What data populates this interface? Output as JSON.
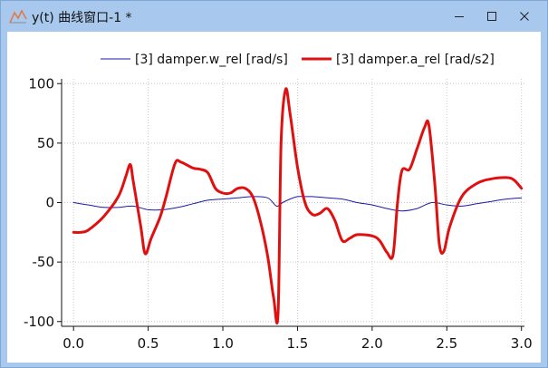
{
  "window": {
    "title": "y(t) 曲线窗口-1 *",
    "app_icon": "chart-line-icon",
    "controls": [
      "minimize-icon",
      "maximize-icon",
      "close-icon"
    ],
    "colors": {
      "titlebar": "#a9c8ee",
      "border": "#7fa7d6"
    }
  },
  "chart_data": {
    "type": "line",
    "title": "",
    "xlabel": "",
    "ylabel": "",
    "xlim": [
      -0.08,
      3.02
    ],
    "ylim": [
      -104,
      104
    ],
    "grid": true,
    "legend_position": "top",
    "x_ticks": [
      0.0,
      0.5,
      1.0,
      1.5,
      2.0,
      2.5,
      3.0
    ],
    "x_tick_labels": [
      "0.0",
      "0.5",
      "1.0",
      "1.5",
      "2.0",
      "2.5",
      "3.0"
    ],
    "y_ticks": [
      100,
      50,
      0,
      -50,
      -100
    ],
    "y_tick_labels": [
      "100",
      "50",
      "0",
      "-50",
      "-100"
    ],
    "series": [
      {
        "name": "[3] damper.w_rel [rad/s]",
        "color": "#1a1aa8",
        "x": [
          0,
          0.1,
          0.2,
          0.3,
          0.4,
          0.5,
          0.6,
          0.7,
          0.8,
          0.9,
          1.0,
          1.1,
          1.2,
          1.3,
          1.36,
          1.4,
          1.45,
          1.5,
          1.55,
          1.6,
          1.7,
          1.8,
          1.9,
          2.0,
          2.1,
          2.2,
          2.3,
          2.4,
          2.5,
          2.6,
          2.7,
          2.8,
          2.9,
          3.0
        ],
        "y": [
          0,
          -2,
          -4,
          -4,
          -3,
          -6,
          -6,
          -4,
          -1,
          2,
          3,
          4,
          5,
          4,
          -3,
          0,
          3,
          5,
          5,
          5,
          4,
          3,
          0,
          -2,
          -5,
          -7,
          -5,
          0,
          -2,
          -3,
          -1,
          1,
          3,
          4
        ]
      },
      {
        "name": "[3] damper.a_rel [rad/s2]",
        "color": "#e01010",
        "x": [
          0,
          0.05,
          0.1,
          0.2,
          0.3,
          0.35,
          0.38,
          0.4,
          0.45,
          0.48,
          0.52,
          0.58,
          0.62,
          0.68,
          0.72,
          0.8,
          0.85,
          0.9,
          0.95,
          1.0,
          1.05,
          1.1,
          1.15,
          1.2,
          1.25,
          1.3,
          1.34,
          1.37,
          1.39,
          1.42,
          1.45,
          1.5,
          1.55,
          1.6,
          1.65,
          1.7,
          1.75,
          1.8,
          1.85,
          1.9,
          2.0,
          2.05,
          2.1,
          2.14,
          2.17,
          2.2,
          2.25,
          2.3,
          2.35,
          2.38,
          2.42,
          2.45,
          2.48,
          2.52,
          2.6,
          2.7,
          2.8,
          2.9,
          2.95,
          3.0
        ],
        "y": [
          -25,
          -25,
          -23,
          -12,
          5,
          22,
          32,
          18,
          -20,
          -43,
          -30,
          -12,
          5,
          33,
          34,
          29,
          28,
          25,
          12,
          8,
          8,
          12,
          12,
          5,
          -15,
          -45,
          -80,
          -93,
          50,
          95,
          75,
          30,
          0,
          -10,
          -9,
          -5,
          -15,
          -32,
          -30,
          -27,
          -28,
          -32,
          -42,
          -44,
          0,
          27,
          28,
          45,
          63,
          65,
          15,
          -35,
          -41,
          -20,
          5,
          16,
          20,
          21,
          19,
          12
        ]
      }
    ]
  }
}
